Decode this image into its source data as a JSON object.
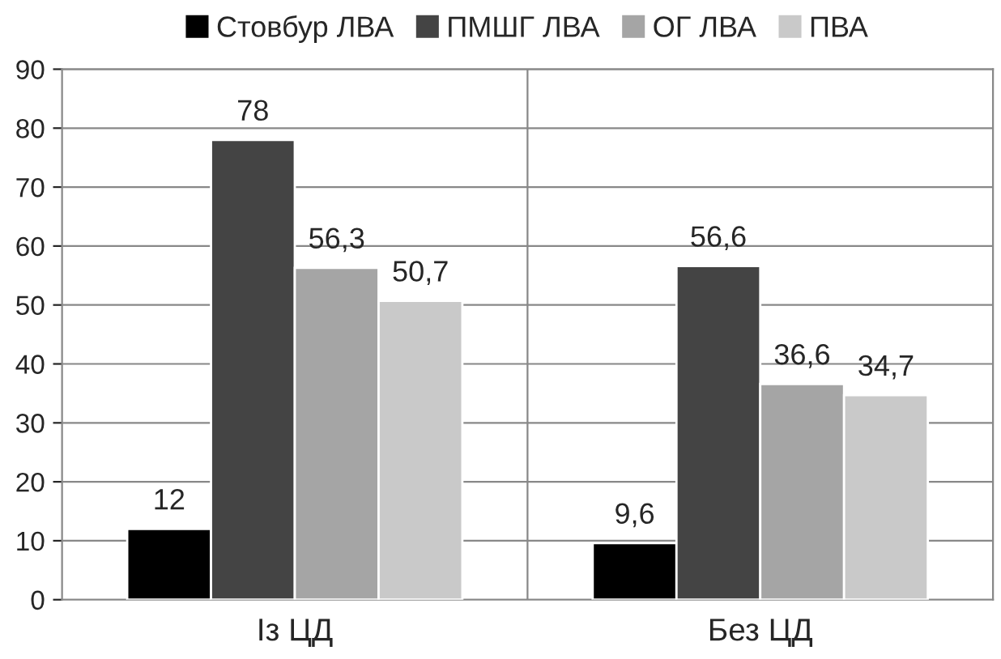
{
  "chart_data": {
    "type": "bar",
    "categories": [
      "Із ЦД",
      "Без ЦД"
    ],
    "series": [
      {
        "name": "Стовбур ЛВА",
        "color": "#000000",
        "values": [
          12,
          9.6
        ],
        "value_labels": [
          "12",
          "9,6"
        ]
      },
      {
        "name": "ПМШГ ЛВА",
        "color": "#444444",
        "values": [
          78,
          56.6
        ],
        "value_labels": [
          "78",
          "56,6"
        ]
      },
      {
        "name": "ОГ ЛВА",
        "color": "#a5a5a5",
        "values": [
          56.3,
          36.6
        ],
        "value_labels": [
          "56,3",
          "36,6"
        ]
      },
      {
        "name": "ПВА",
        "color": "#c9c9c9",
        "values": [
          50.7,
          34.7
        ],
        "value_labels": [
          "50,7",
          "34,7"
        ]
      }
    ],
    "ylim": [
      0,
      90
    ],
    "yticks": [
      0,
      10,
      20,
      30,
      40,
      50,
      60,
      70,
      80,
      90
    ],
    "grid": true,
    "legend": "top"
  }
}
